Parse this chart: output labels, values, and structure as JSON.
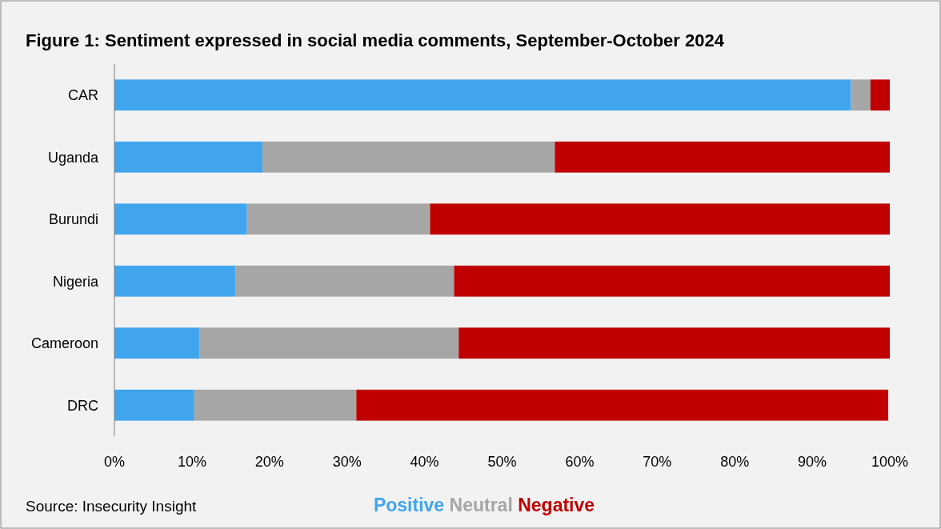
{
  "chart_data": {
    "type": "bar",
    "orientation": "horizontal",
    "stacked": true,
    "title": "Figure 1: Sentiment  expressed in social media comments, September-October 2024",
    "categories": [
      "CAR",
      "Uganda",
      "Burundi",
      "Nigeria",
      "Cameroon",
      "DRC"
    ],
    "series": [
      {
        "name": "Positive",
        "color": "#41a5ee",
        "values": [
          95,
          19.1,
          17.1,
          15.6,
          11.0,
          10.3
        ]
      },
      {
        "name": "Neutral",
        "color": "#a6a6a6",
        "values": [
          2.5,
          37.7,
          23.6,
          28.2,
          33.4,
          20.9
        ]
      },
      {
        "name": "Negative",
        "color": "#c00000",
        "values": [
          2.5,
          43.2,
          59.3,
          56.2,
          55.6,
          68.6
        ]
      }
    ],
    "xlim": [
      0,
      100
    ],
    "xticks": [
      {
        "value": 0,
        "label": "0%"
      },
      {
        "value": 10,
        "label": "10%"
      },
      {
        "value": 20,
        "label": "20%"
      },
      {
        "value": 30,
        "label": "30%"
      },
      {
        "value": 40,
        "label": "40%"
      },
      {
        "value": 50,
        "label": "50%"
      },
      {
        "value": 60,
        "label": "60%"
      },
      {
        "value": 70,
        "label": "70%"
      },
      {
        "value": 80,
        "label": "80%"
      },
      {
        "value": 90,
        "label": "90%"
      },
      {
        "value": 100,
        "label": "100%"
      }
    ],
    "grid": false,
    "legend": "bottom",
    "annotations": [
      "Source: Insecurity Insight"
    ]
  }
}
